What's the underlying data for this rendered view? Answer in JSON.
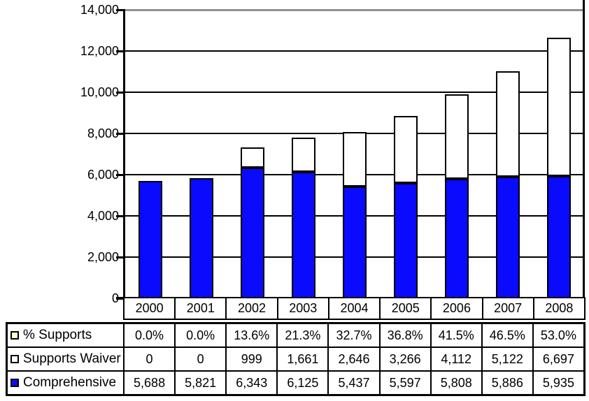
{
  "chart_data": {
    "type": "bar",
    "stacked": true,
    "title": "",
    "xlabel": "",
    "ylabel": "",
    "categories": [
      "2000",
      "2001",
      "2002",
      "2003",
      "2004",
      "2005",
      "2006",
      "2007",
      "2008"
    ],
    "series": [
      {
        "name": "% Supports",
        "render": "table-only",
        "marker_color": "#ffffcc",
        "values": [
          0.0,
          0.0,
          13.6,
          21.3,
          32.7,
          36.8,
          41.5,
          46.5,
          53.0
        ],
        "values_display": [
          "0.0%",
          "0.0%",
          "13.6%",
          "21.3%",
          "32.7%",
          "36.8%",
          "41.5%",
          "46.5%",
          "53.0%"
        ]
      },
      {
        "name": "Supports Waiver",
        "render": "bar-top",
        "color": "#ffffff",
        "values": [
          0,
          0,
          999,
          1661,
          2646,
          3266,
          4112,
          5122,
          6697
        ],
        "values_display": [
          "0",
          "0",
          "999",
          "1,661",
          "2,646",
          "3,266",
          "4,112",
          "5,122",
          "6,697"
        ]
      },
      {
        "name": "Comprehensive",
        "render": "bar-bottom",
        "color": "#0a0aff",
        "values": [
          5688,
          5821,
          6343,
          6125,
          5437,
          5597,
          5808,
          5886,
          5935
        ],
        "values_display": [
          "5,688",
          "5,821",
          "6,343",
          "6,125",
          "5,437",
          "5,597",
          "5,808",
          "5,886",
          "5,935"
        ]
      }
    ],
    "ylim": [
      0,
      14000
    ],
    "ytick_interval": 2000,
    "ytick_labels": [
      "14,000",
      "12,000",
      "10,000",
      "8,000",
      "6,000",
      "4,000",
      "2,000",
      "0"
    ],
    "grid": true,
    "gridline_color": "#000000",
    "top_gridline_color": "#909090",
    "bar_border_color": "#000000",
    "axis_color": "#000000",
    "legend_position": "table-left"
  }
}
